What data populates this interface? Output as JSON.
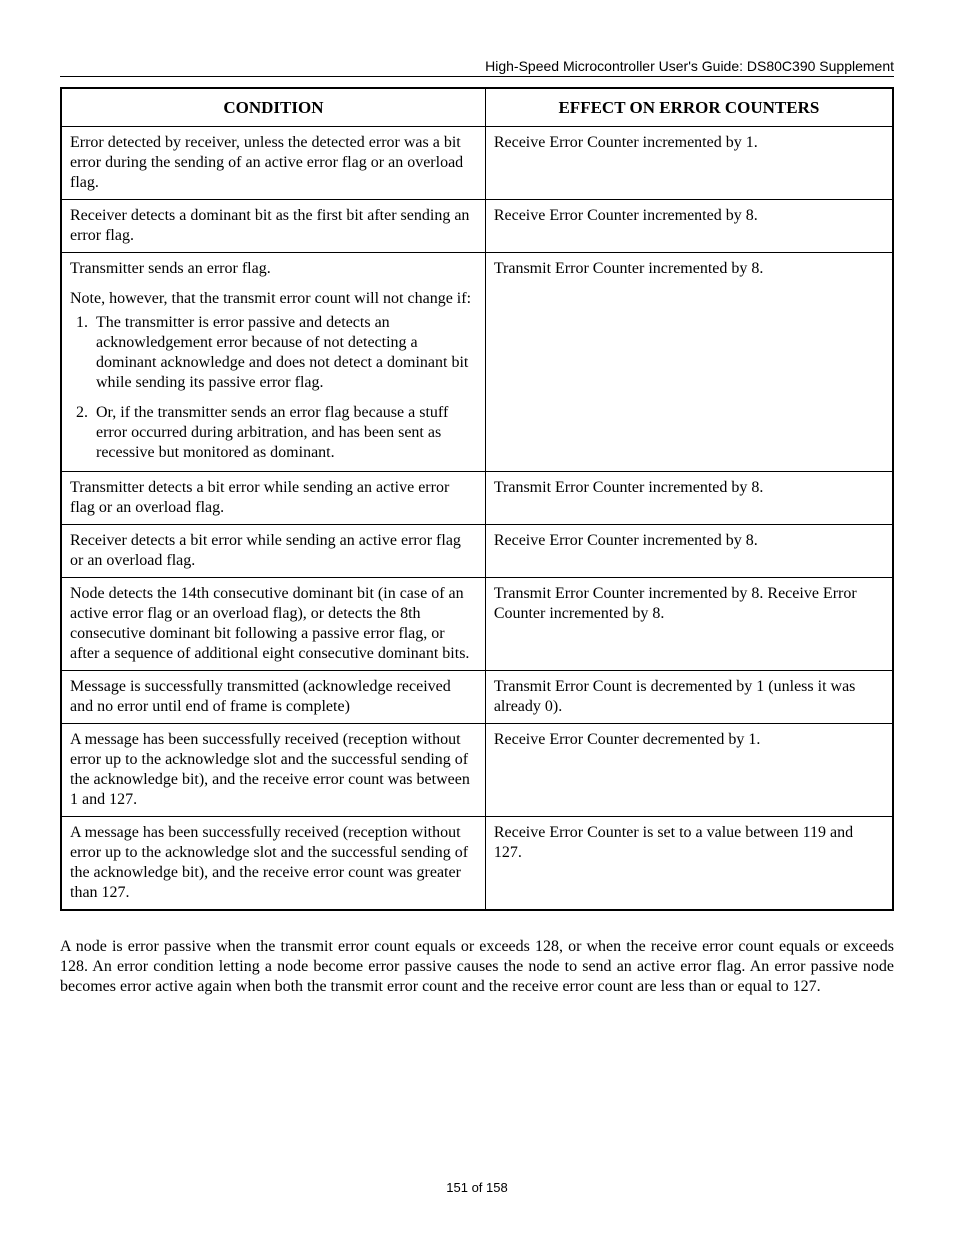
{
  "header": {
    "title": "High-Speed Microcontroller User's Guide: DS80C390 Supplement"
  },
  "table": {
    "columns": [
      "CONDITION",
      "EFFECT ON ERROR COUNTERS"
    ],
    "rows": [
      {
        "condition": "Error detected by receiver, unless the detected error was a bit error during the sending of an active error flag or an overload flag.",
        "effect": "Receive Error Counter incremented by 1."
      },
      {
        "condition": "Receiver detects a dominant bit as the first bit after sending an error flag.",
        "effect": "Receive Error Counter incremented by 8."
      },
      {
        "condition_intro": "Transmitter sends an error flag.",
        "condition_note": "Note, however, that the transmit error count will not change if:",
        "condition_list": [
          "The transmitter is error passive and detects an acknowledgement error because of not detecting a dominant acknowledge and does not detect a dominant bit while sending its passive error flag.",
          "Or, if the transmitter sends an error flag because a stuff error occurred during arbitration, and has been sent as recessive but monitored as dominant."
        ],
        "effect": "Transmit Error Counter incremented by 8."
      },
      {
        "condition": "Transmitter detects a bit error while sending an active error flag or an overload flag.",
        "effect": "Transmit Error Counter incremented by 8."
      },
      {
        "condition": "Receiver detects a bit error while sending an active error flag or an overload flag.",
        "effect": "Receive Error Counter incremented by 8."
      },
      {
        "condition": "Node detects the 14th consecutive dominant bit (in case of an active error flag or an overload flag), or detects the 8th consecutive dominant bit following a passive error flag, or after a sequence of additional eight consecutive dominant bits.",
        "effect": "Transmit Error Counter incremented by 8. Receive Error Counter incremented by 8."
      },
      {
        "condition": "Message is successfully transmitted (acknowledge received and no error until end of frame is complete)",
        "effect": "Transmit Error Count is decremented by 1 (unless it was already 0)."
      },
      {
        "condition": "A message has been successfully received (reception without error up to the acknowledge slot and the successful sending of the acknowledge bit), and the receive error count was between 1 and 127.",
        "effect": "Receive Error Counter decremented by 1."
      },
      {
        "condition": "A message has been successfully received (reception without error up to the acknowledge slot and the successful sending of the acknowledge bit), and the receive error count was greater than 127.",
        "effect": "Receive Error Counter is set to a value between 119 and 127."
      }
    ]
  },
  "body_paragraph": "A node is error passive when the transmit error count equals or exceeds 128, or when the receive error count equals or exceeds 128. An error condition letting a node become error passive causes the node to send an active error flag. An error passive node becomes error active again when both the transmit error count and the receive error count are less than or equal to 127.",
  "footer": {
    "page": "151 of 158"
  }
}
